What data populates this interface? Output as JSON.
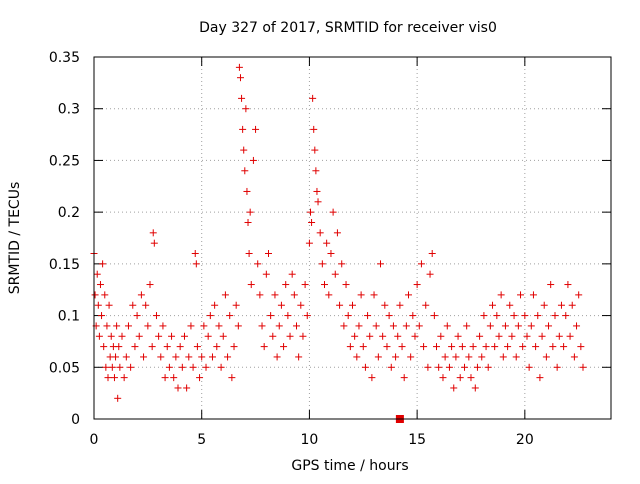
{
  "chart_data": {
    "type": "scatter",
    "title": "Day 327 of 2017, SRMTID for receiver vis0",
    "xlabel": "GPS time / hours",
    "ylabel": "SRMTID / TECUs",
    "xlim": [
      0,
      24
    ],
    "ylim": [
      0,
      0.35
    ],
    "xticks": [
      0,
      5,
      10,
      15,
      20
    ],
    "xtick_labels": [
      "0",
      "5",
      "10",
      "15",
      "20"
    ],
    "yticks": [
      0,
      0.05,
      0.1,
      0.15,
      0.2,
      0.25,
      0.3,
      0.35
    ],
    "ytick_labels": [
      "0",
      "0.05",
      "0.1",
      "0.15",
      "0.2",
      "0.25",
      "0.3",
      "0.35"
    ],
    "grid": true,
    "marker": "plus",
    "color": "#e00000",
    "series": [
      {
        "name": "SRMTID",
        "points": [
          [
            0.0,
            0.16
          ],
          [
            0.05,
            0.12
          ],
          [
            0.1,
            0.09
          ],
          [
            0.15,
            0.14
          ],
          [
            0.2,
            0.11
          ],
          [
            0.25,
            0.08
          ],
          [
            0.3,
            0.13
          ],
          [
            0.35,
            0.1
          ],
          [
            0.4,
            0.15
          ],
          [
            0.45,
            0.07
          ],
          [
            0.5,
            0.12
          ],
          [
            0.55,
            0.05
          ],
          [
            0.6,
            0.09
          ],
          [
            0.65,
            0.04
          ],
          [
            0.7,
            0.11
          ],
          [
            0.75,
            0.06
          ],
          [
            0.8,
            0.08
          ],
          [
            0.85,
            0.05
          ],
          [
            0.9,
            0.07
          ],
          [
            0.95,
            0.04
          ],
          [
            1.0,
            0.06
          ],
          [
            1.05,
            0.09
          ],
          [
            1.1,
            0.02
          ],
          [
            1.15,
            0.07
          ],
          [
            1.2,
            0.05
          ],
          [
            1.3,
            0.08
          ],
          [
            1.4,
            0.04
          ],
          [
            1.5,
            0.06
          ],
          [
            1.6,
            0.09
          ],
          [
            1.7,
            0.05
          ],
          [
            1.8,
            0.11
          ],
          [
            1.9,
            0.07
          ],
          [
            2.0,
            0.1
          ],
          [
            2.1,
            0.08
          ],
          [
            2.2,
            0.12
          ],
          [
            2.3,
            0.06
          ],
          [
            2.4,
            0.11
          ],
          [
            2.5,
            0.09
          ],
          [
            2.6,
            0.13
          ],
          [
            2.7,
            0.07
          ],
          [
            2.75,
            0.18
          ],
          [
            2.8,
            0.17
          ],
          [
            2.9,
            0.1
          ],
          [
            3.0,
            0.08
          ],
          [
            3.1,
            0.06
          ],
          [
            3.2,
            0.09
          ],
          [
            3.3,
            0.04
          ],
          [
            3.4,
            0.07
          ],
          [
            3.5,
            0.05
          ],
          [
            3.6,
            0.08
          ],
          [
            3.7,
            0.04
          ],
          [
            3.8,
            0.06
          ],
          [
            3.9,
            0.03
          ],
          [
            4.0,
            0.07
          ],
          [
            4.1,
            0.05
          ],
          [
            4.2,
            0.08
          ],
          [
            4.3,
            0.03
          ],
          [
            4.4,
            0.06
          ],
          [
            4.5,
            0.09
          ],
          [
            4.6,
            0.05
          ],
          [
            4.7,
            0.16
          ],
          [
            4.75,
            0.15
          ],
          [
            4.8,
            0.07
          ],
          [
            4.9,
            0.04
          ],
          [
            5.0,
            0.06
          ],
          [
            5.1,
            0.09
          ],
          [
            5.2,
            0.05
          ],
          [
            5.3,
            0.08
          ],
          [
            5.4,
            0.1
          ],
          [
            5.5,
            0.06
          ],
          [
            5.6,
            0.11
          ],
          [
            5.7,
            0.07
          ],
          [
            5.8,
            0.09
          ],
          [
            5.9,
            0.05
          ],
          [
            6.0,
            0.08
          ],
          [
            6.1,
            0.12
          ],
          [
            6.2,
            0.06
          ],
          [
            6.3,
            0.1
          ],
          [
            6.4,
            0.04
          ],
          [
            6.5,
            0.07
          ],
          [
            6.6,
            0.11
          ],
          [
            6.7,
            0.09
          ],
          [
            6.75,
            0.34
          ],
          [
            6.8,
            0.33
          ],
          [
            6.85,
            0.31
          ],
          [
            6.9,
            0.28
          ],
          [
            6.95,
            0.26
          ],
          [
            7.0,
            0.24
          ],
          [
            7.05,
            0.3
          ],
          [
            7.1,
            0.22
          ],
          [
            7.15,
            0.19
          ],
          [
            7.2,
            0.16
          ],
          [
            7.25,
            0.2
          ],
          [
            7.3,
            0.13
          ],
          [
            7.4,
            0.25
          ],
          [
            7.5,
            0.28
          ],
          [
            7.6,
            0.15
          ],
          [
            7.7,
            0.12
          ],
          [
            7.8,
            0.09
          ],
          [
            7.9,
            0.07
          ],
          [
            8.0,
            0.14
          ],
          [
            8.1,
            0.16
          ],
          [
            8.2,
            0.1
          ],
          [
            8.3,
            0.08
          ],
          [
            8.4,
            0.12
          ],
          [
            8.5,
            0.06
          ],
          [
            8.6,
            0.09
          ],
          [
            8.7,
            0.11
          ],
          [
            8.8,
            0.07
          ],
          [
            8.9,
            0.13
          ],
          [
            9.0,
            0.1
          ],
          [
            9.1,
            0.08
          ],
          [
            9.2,
            0.14
          ],
          [
            9.3,
            0.12
          ],
          [
            9.4,
            0.09
          ],
          [
            9.5,
            0.06
          ],
          [
            9.6,
            0.11
          ],
          [
            9.7,
            0.08
          ],
          [
            9.8,
            0.13
          ],
          [
            9.9,
            0.1
          ],
          [
            10.0,
            0.17
          ],
          [
            10.05,
            0.2
          ],
          [
            10.1,
            0.19
          ],
          [
            10.15,
            0.31
          ],
          [
            10.2,
            0.28
          ],
          [
            10.25,
            0.26
          ],
          [
            10.3,
            0.24
          ],
          [
            10.35,
            0.22
          ],
          [
            10.4,
            0.21
          ],
          [
            10.5,
            0.18
          ],
          [
            10.6,
            0.15
          ],
          [
            10.7,
            0.13
          ],
          [
            10.8,
            0.17
          ],
          [
            10.9,
            0.12
          ],
          [
            11.0,
            0.16
          ],
          [
            11.1,
            0.2
          ],
          [
            11.2,
            0.14
          ],
          [
            11.3,
            0.18
          ],
          [
            11.4,
            0.11
          ],
          [
            11.5,
            0.15
          ],
          [
            11.6,
            0.09
          ],
          [
            11.7,
            0.13
          ],
          [
            11.8,
            0.1
          ],
          [
            11.9,
            0.07
          ],
          [
            12.0,
            0.11
          ],
          [
            12.1,
            0.08
          ],
          [
            12.2,
            0.06
          ],
          [
            12.3,
            0.09
          ],
          [
            12.4,
            0.12
          ],
          [
            12.5,
            0.07
          ],
          [
            12.6,
            0.05
          ],
          [
            12.7,
            0.1
          ],
          [
            12.8,
            0.08
          ],
          [
            12.9,
            0.04
          ],
          [
            13.0,
            0.12
          ],
          [
            13.1,
            0.09
          ],
          [
            13.2,
            0.06
          ],
          [
            13.3,
            0.15
          ],
          [
            13.4,
            0.08
          ],
          [
            13.5,
            0.11
          ],
          [
            13.6,
            0.07
          ],
          [
            13.7,
            0.1
          ],
          [
            13.8,
            0.05
          ],
          [
            13.9,
            0.09
          ],
          [
            14.0,
            0.06
          ],
          [
            14.1,
            0.08
          ],
          [
            14.2,
            0.11
          ],
          [
            14.3,
            0.07
          ],
          [
            14.4,
            0.04
          ],
          [
            14.5,
            0.09
          ],
          [
            14.6,
            0.12
          ],
          [
            14.7,
            0.06
          ],
          [
            14.8,
            0.1
          ],
          [
            14.9,
            0.08
          ],
          [
            15.0,
            0.13
          ],
          [
            15.1,
            0.09
          ],
          [
            15.2,
            0.15
          ],
          [
            15.3,
            0.07
          ],
          [
            15.4,
            0.11
          ],
          [
            15.5,
            0.05
          ],
          [
            15.6,
            0.14
          ],
          [
            15.7,
            0.16
          ],
          [
            15.8,
            0.1
          ],
          [
            15.9,
            0.07
          ],
          [
            16.0,
            0.05
          ],
          [
            16.1,
            0.08
          ],
          [
            16.2,
            0.04
          ],
          [
            16.3,
            0.06
          ],
          [
            16.4,
            0.09
          ],
          [
            16.5,
            0.05
          ],
          [
            16.6,
            0.07
          ],
          [
            16.7,
            0.03
          ],
          [
            16.8,
            0.06
          ],
          [
            16.9,
            0.08
          ],
          [
            17.0,
            0.04
          ],
          [
            17.1,
            0.07
          ],
          [
            17.2,
            0.05
          ],
          [
            17.3,
            0.09
          ],
          [
            17.4,
            0.06
          ],
          [
            17.5,
            0.04
          ],
          [
            17.6,
            0.07
          ],
          [
            17.7,
            0.03
          ],
          [
            17.8,
            0.05
          ],
          [
            17.9,
            0.08
          ],
          [
            18.0,
            0.06
          ],
          [
            18.1,
            0.1
          ],
          [
            18.2,
            0.07
          ],
          [
            18.3,
            0.05
          ],
          [
            18.4,
            0.09
          ],
          [
            18.5,
            0.11
          ],
          [
            18.6,
            0.07
          ],
          [
            18.7,
            0.1
          ],
          [
            18.8,
            0.08
          ],
          [
            18.9,
            0.12
          ],
          [
            19.0,
            0.06
          ],
          [
            19.1,
            0.09
          ],
          [
            19.2,
            0.07
          ],
          [
            19.3,
            0.11
          ],
          [
            19.4,
            0.08
          ],
          [
            19.5,
            0.1
          ],
          [
            19.6,
            0.06
          ],
          [
            19.7,
            0.09
          ],
          [
            19.8,
            0.12
          ],
          [
            19.9,
            0.07
          ],
          [
            20.0,
            0.1
          ],
          [
            20.1,
            0.08
          ],
          [
            20.2,
            0.05
          ],
          [
            20.3,
            0.09
          ],
          [
            20.4,
            0.12
          ],
          [
            20.5,
            0.07
          ],
          [
            20.6,
            0.1
          ],
          [
            20.7,
            0.04
          ],
          [
            20.8,
            0.08
          ],
          [
            20.9,
            0.11
          ],
          [
            21.0,
            0.06
          ],
          [
            21.1,
            0.09
          ],
          [
            21.2,
            0.13
          ],
          [
            21.3,
            0.07
          ],
          [
            21.4,
            0.1
          ],
          [
            21.5,
            0.05
          ],
          [
            21.6,
            0.08
          ],
          [
            21.7,
            0.11
          ],
          [
            21.8,
            0.07
          ],
          [
            21.9,
            0.1
          ],
          [
            22.0,
            0.13
          ],
          [
            22.1,
            0.08
          ],
          [
            22.2,
            0.11
          ],
          [
            22.3,
            0.06
          ],
          [
            22.4,
            0.09
          ],
          [
            22.5,
            0.12
          ],
          [
            22.6,
            0.07
          ],
          [
            22.7,
            0.05
          ]
        ]
      }
    ],
    "marker_at_zero": {
      "x": 14.2,
      "y": 0,
      "shape": "filled-square"
    }
  }
}
